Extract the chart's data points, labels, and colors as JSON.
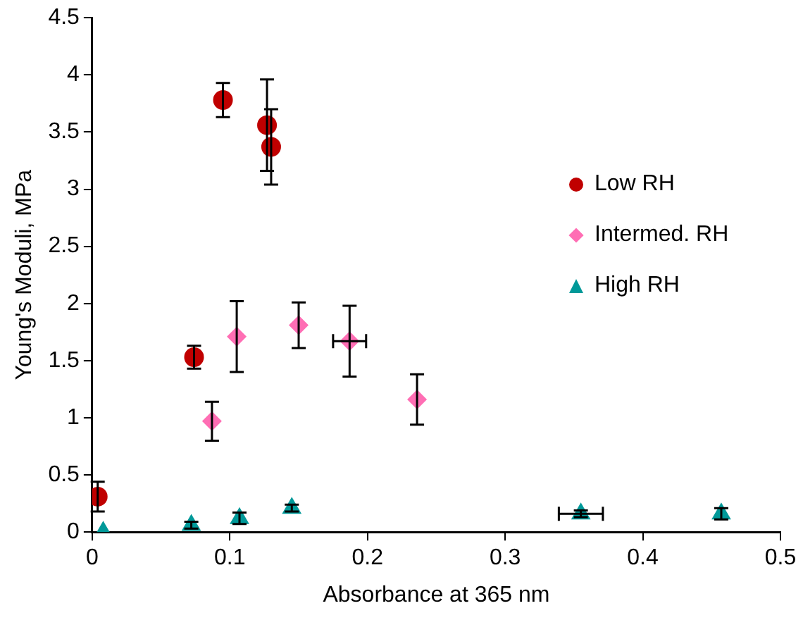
{
  "chart_data": {
    "type": "scatter",
    "xlabel": "Absorbance at 365 nm",
    "ylabel": "Young's Moduli, MPa",
    "xlim": [
      0,
      0.5
    ],
    "xticks": [
      0,
      0.1,
      0.2,
      0.3,
      0.4,
      0.5
    ],
    "ylim": [
      0,
      4.5
    ],
    "yticks": [
      0,
      0.5,
      1,
      1.5,
      2,
      2.5,
      3,
      3.5,
      4,
      4.5
    ],
    "grid": false,
    "legend": "right",
    "series": [
      {
        "name": "Low RH",
        "color": "#c00000",
        "marker": "circle",
        "x": [
          0.004,
          0.074,
          0.095,
          0.127,
          0.13
        ],
        "values": [
          0.31,
          1.53,
          3.78,
          3.56,
          3.37
        ],
        "errors": [
          0.13,
          0.1,
          0.15,
          0.4,
          0.33
        ]
      },
      {
        "name": "Intermed. RH",
        "color": "#ff6eb4",
        "marker": "diamond",
        "x": [
          0.087,
          0.105,
          0.15,
          0.187,
          0.236
        ],
        "values": [
          0.97,
          1.71,
          1.81,
          1.67,
          1.16
        ],
        "errors": [
          0.17,
          0.31,
          0.2,
          0.31,
          0.22
        ],
        "xerrors": [
          null,
          null,
          null,
          0.012,
          null
        ]
      },
      {
        "name": "High RH",
        "color": "#009999",
        "marker": "triangle",
        "x": [
          0.008,
          0.072,
          0.107,
          0.145,
          0.355,
          0.457
        ],
        "values": [
          0,
          0.06,
          0.12,
          0.21,
          0.16,
          0.16
        ],
        "errors": [
          null,
          0.03,
          0.05,
          0.03,
          0.03,
          0.05
        ],
        "xerrors": [
          null,
          null,
          null,
          null,
          0.016,
          null
        ]
      }
    ]
  }
}
